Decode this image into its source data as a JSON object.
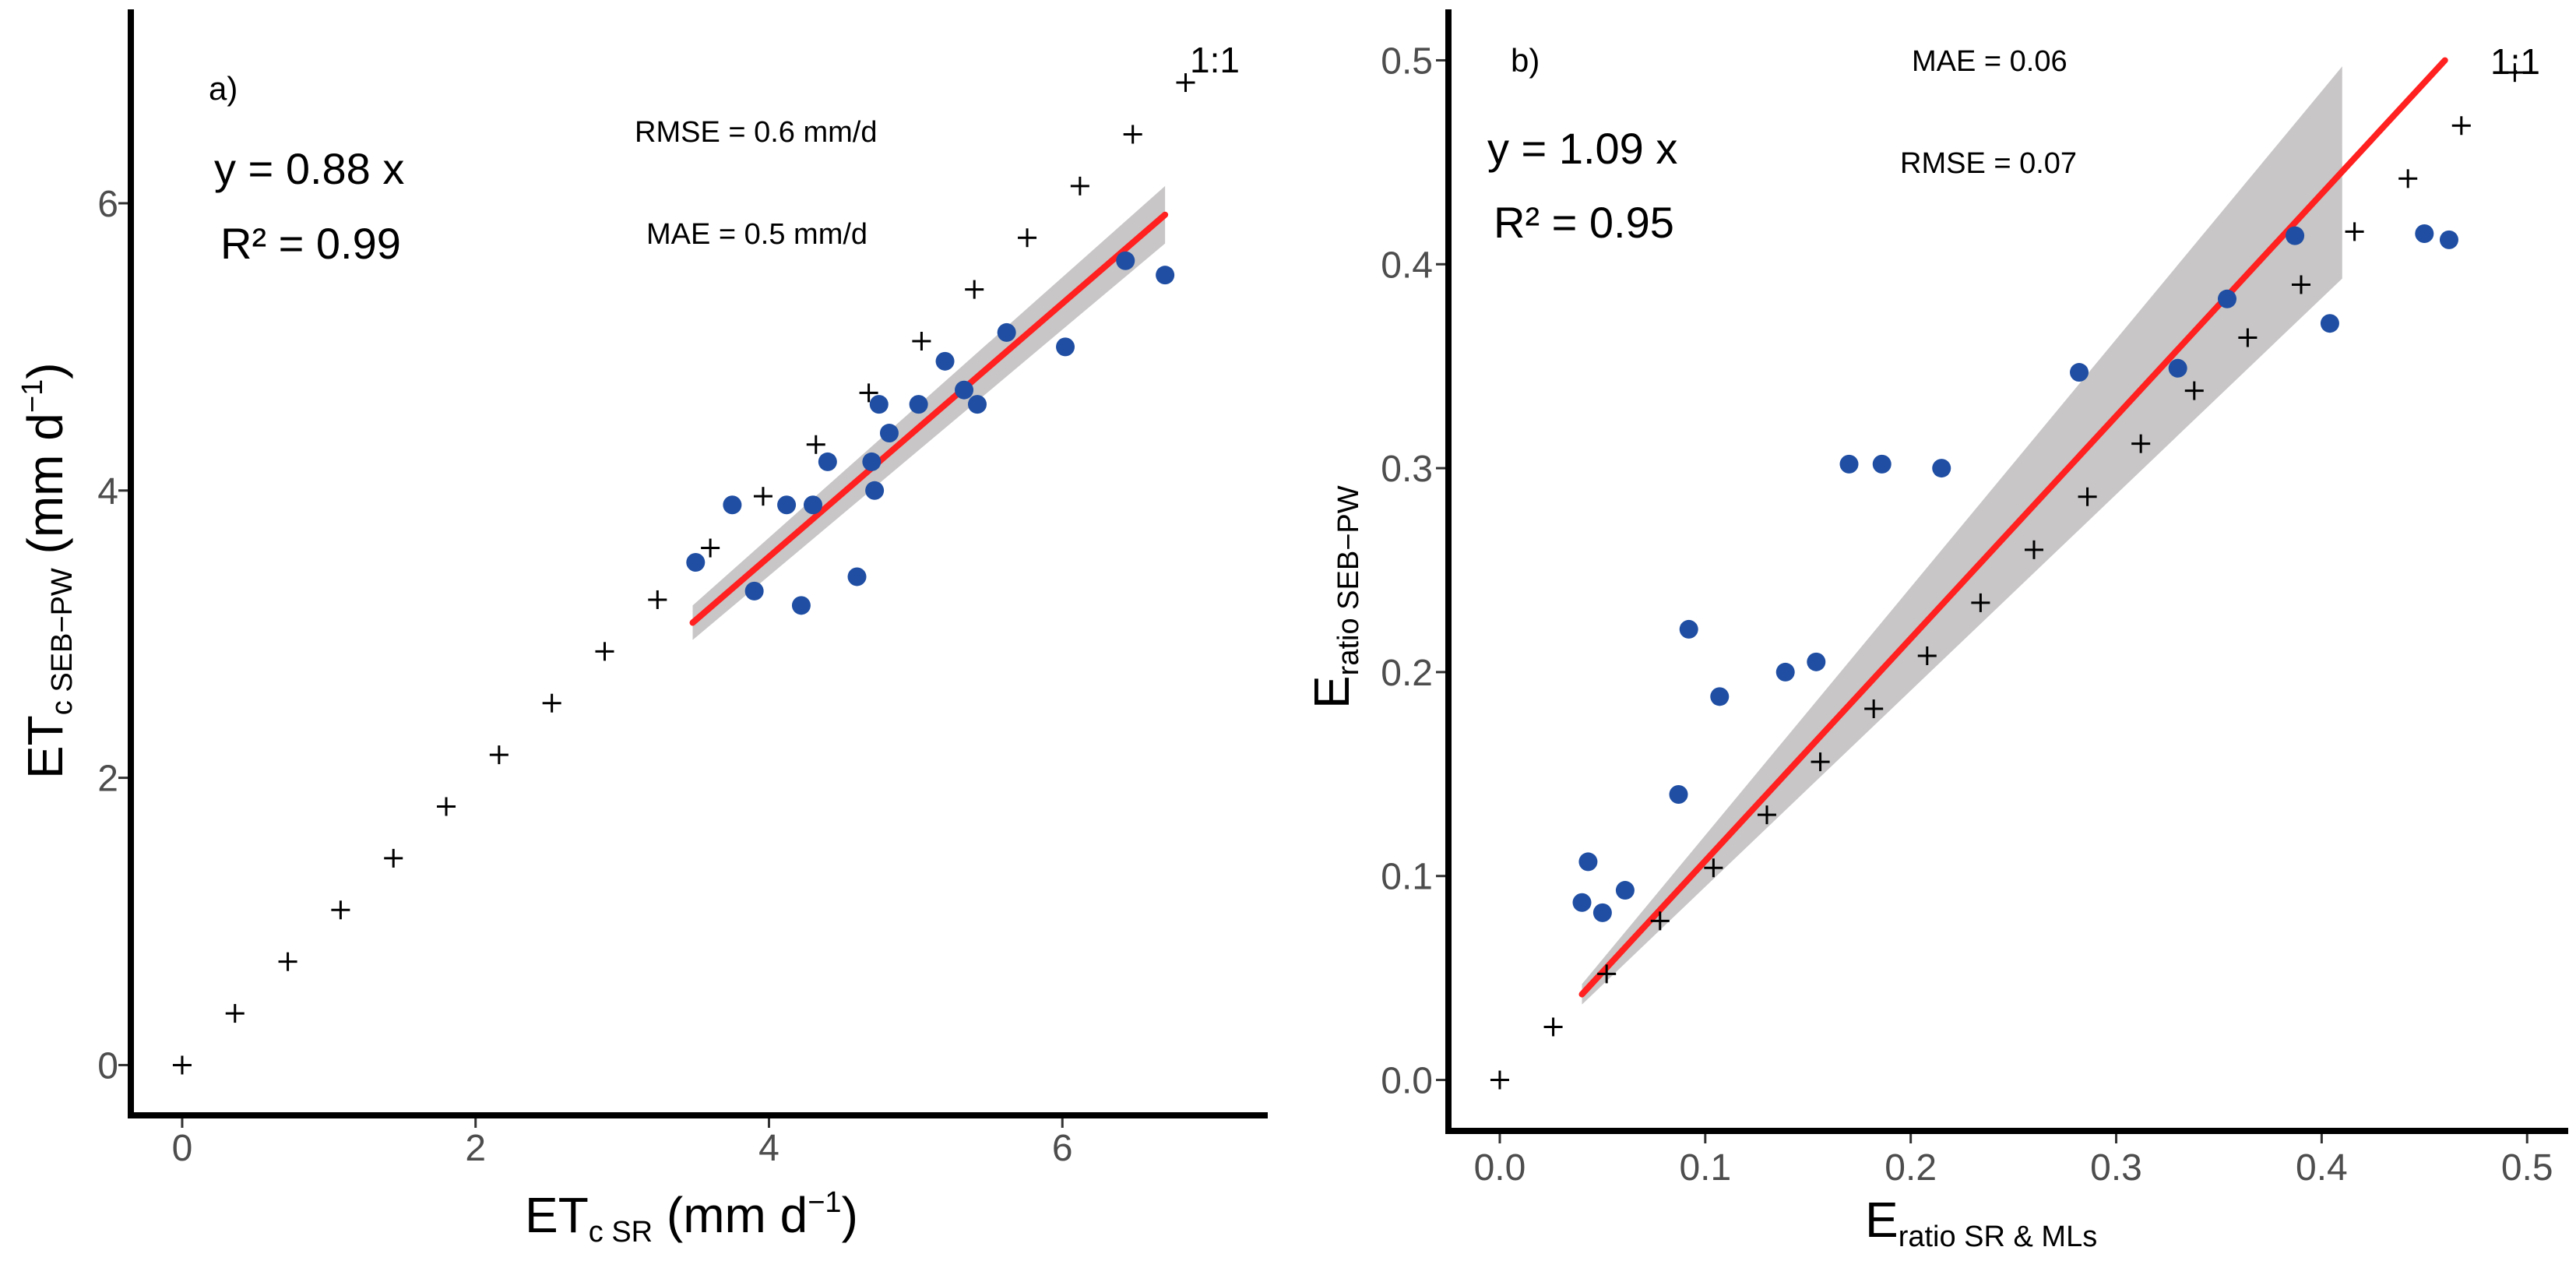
{
  "colors": {
    "points": "#1f4ea3",
    "fit": "#ff2020",
    "band": "#c8c6c6",
    "axis": "#000000",
    "tick_text": "#4d4d4d"
  },
  "chart_data": [
    {
      "type": "scatter",
      "panel_label": "a)",
      "xlim": [
        -0.35,
        7.4
      ],
      "ylim": [
        -0.35,
        7.35
      ],
      "xticks": [
        0,
        2,
        4,
        6
      ],
      "yticks": [
        0,
        2,
        4,
        6
      ],
      "xtick_labels": [
        "0",
        "2",
        "4",
        "6"
      ],
      "ytick_labels": [
        "0",
        "2",
        "4",
        "6"
      ],
      "xlabel": {
        "main": "ET",
        "sub": "c SR",
        "tail": " (mm d",
        "sup": "−1",
        "end": ")"
      },
      "ylabel": {
        "main": "ET",
        "sub": "c SEB−PW",
        "tail": " (mm d",
        "sup": "−1",
        "end": ")"
      },
      "equation": "y = 0.88 x",
      "r2": "R² = 0.99",
      "rmse": "RMSE = 0.6 mm/d",
      "mae": "MAE = 0.5 mm/d",
      "one_to_one_label": "1:1",
      "one_to_one": {
        "x": [
          0,
          0.36,
          0.72,
          1.08,
          1.44,
          1.8,
          2.16,
          2.52,
          2.88,
          3.24,
          3.6,
          3.96,
          4.32,
          4.68,
          5.04,
          5.4,
          5.76,
          6.12,
          6.48,
          6.84
        ],
        "y": [
          0,
          0.36,
          0.72,
          1.08,
          1.44,
          1.8,
          2.16,
          2.52,
          2.88,
          3.24,
          3.6,
          3.96,
          4.32,
          4.68,
          5.04,
          5.4,
          5.76,
          6.12,
          6.48,
          6.84
        ]
      },
      "series": [
        {
          "name": "observations",
          "x": [
            3.5,
            3.75,
            3.9,
            4.12,
            4.22,
            4.3,
            4.4,
            4.6,
            4.7,
            4.72,
            4.75,
            4.82,
            5.02,
            5.2,
            5.33,
            5.42,
            5.62,
            6.02,
            6.43,
            6.7
          ],
          "y": [
            3.5,
            3.9,
            3.3,
            3.9,
            3.2,
            3.9,
            4.2,
            3.4,
            4.2,
            4.0,
            4.6,
            4.4,
            4.6,
            4.9,
            4.7,
            4.6,
            5.1,
            5.0,
            5.6,
            5.5
          ]
        }
      ],
      "fit": {
        "x": [
          3.48,
          6.7
        ],
        "y": [
          3.08,
          5.92
        ]
      },
      "band": {
        "x": [
          3.48,
          6.7
        ],
        "lower": [
          2.96,
          5.72
        ],
        "upper": [
          3.2,
          6.12
        ]
      }
    },
    {
      "type": "scatter",
      "panel_label": "b)",
      "xlim": [
        -0.025,
        0.52
      ],
      "ylim": [
        -0.025,
        0.525
      ],
      "xticks": [
        0.0,
        0.1,
        0.2,
        0.3,
        0.4,
        0.5
      ],
      "yticks": [
        0.0,
        0.1,
        0.2,
        0.3,
        0.4,
        0.5
      ],
      "xtick_labels": [
        "0.0",
        "0.1",
        "0.2",
        "0.3",
        "0.4",
        "0.5"
      ],
      "ytick_labels": [
        "0.0",
        "0.1",
        "0.2",
        "0.3",
        "0.4",
        "0.5"
      ],
      "xlabel": {
        "main": "E",
        "sub": "ratio SR & MLs"
      },
      "ylabel": {
        "main": "E",
        "sub": "ratio SEB−PW"
      },
      "equation": "y = 1.09 x",
      "r2": "R² = 0.95",
      "rmse": "RMSE = 0.07",
      "mae": "MAE = 0.06",
      "one_to_one_label": "1:1",
      "one_to_one": {
        "x": [
          0,
          0.026,
          0.052,
          0.078,
          0.104,
          0.13,
          0.156,
          0.182,
          0.208,
          0.234,
          0.26,
          0.286,
          0.312,
          0.338,
          0.364,
          0.39,
          0.416,
          0.442,
          0.468,
          0.494
        ],
        "y": [
          0,
          0.026,
          0.052,
          0.078,
          0.104,
          0.13,
          0.156,
          0.182,
          0.208,
          0.234,
          0.26,
          0.286,
          0.312,
          0.338,
          0.364,
          0.39,
          0.416,
          0.442,
          0.468,
          0.494
        ]
      },
      "series": [
        {
          "name": "observations",
          "x": [
            0.04,
            0.043,
            0.05,
            0.061,
            0.087,
            0.092,
            0.107,
            0.139,
            0.154,
            0.17,
            0.186,
            0.215,
            0.282,
            0.33,
            0.354,
            0.387,
            0.404,
            0.45,
            0.462
          ],
          "y": [
            0.087,
            0.107,
            0.082,
            0.093,
            0.14,
            0.221,
            0.188,
            0.2,
            0.205,
            0.302,
            0.302,
            0.3,
            0.347,
            0.349,
            0.383,
            0.414,
            0.371,
            0.415,
            0.412
          ]
        }
      ],
      "fit": {
        "x": [
          0.04,
          0.46
        ],
        "y": [
          0.042,
          0.5
        ]
      },
      "band": {
        "x": [
          0.04,
          0.41
        ],
        "lower": [
          0.037,
          0.393
        ],
        "upper": [
          0.047,
          0.497
        ]
      }
    }
  ]
}
